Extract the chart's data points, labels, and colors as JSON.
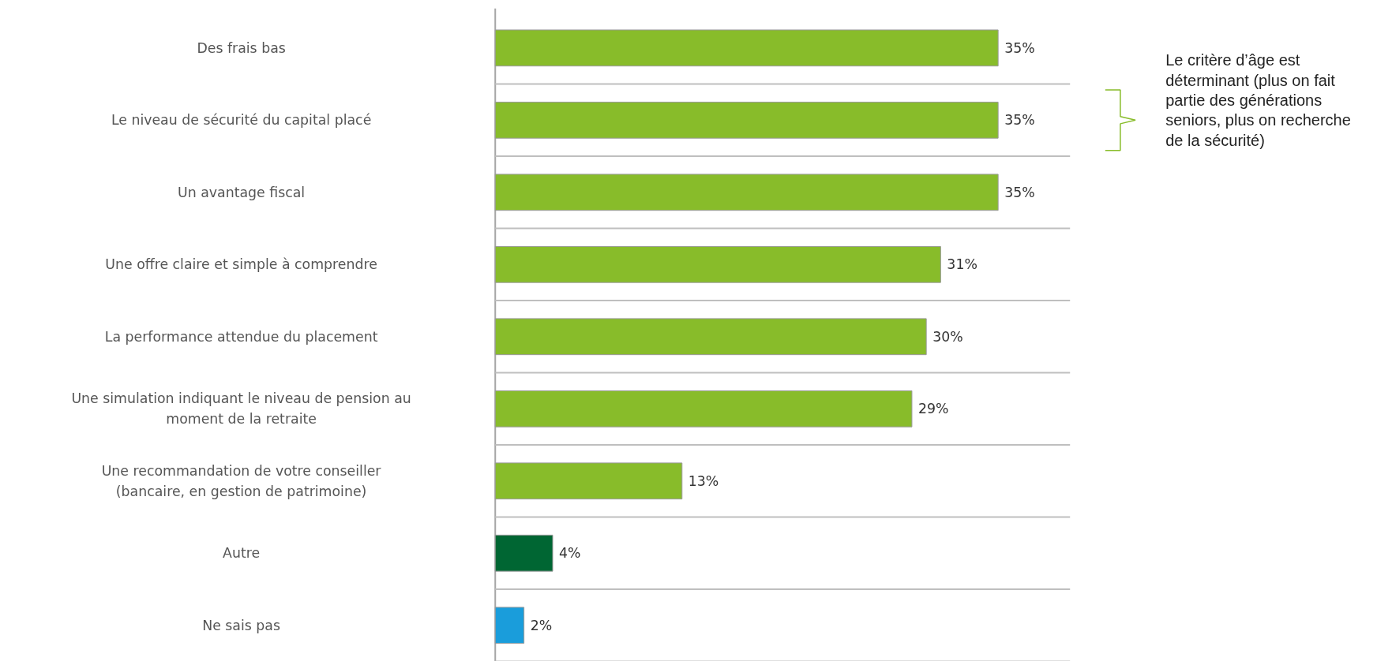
{
  "chart_data": {
    "type": "bar",
    "orientation": "horizontal",
    "categories": [
      "Des frais bas",
      "Le niveau de sécurité du capital placé",
      "Un avantage fiscal",
      "Une offre claire et simple à comprendre",
      "La performance attendue du placement",
      "Une simulation indiquant le niveau de pension au moment de la retraite",
      "Une recommandation de votre conseiller (bancaire, en gestion de patrimoine)",
      "Autre",
      "Ne sais pas"
    ],
    "values": [
      35,
      35,
      35,
      31,
      30,
      29,
      13,
      4,
      2
    ],
    "value_labels": [
      "35%",
      "35%",
      "35%",
      "31%",
      "30%",
      "29%",
      "13%",
      "4%",
      "2%"
    ],
    "colors": [
      "#88bc2a",
      "#88bc2a",
      "#88bc2a",
      "#88bc2a",
      "#88bc2a",
      "#88bc2a",
      "#88bc2a",
      "#006633",
      "#1a9ddb"
    ],
    "tick_labels": "y",
    "grid": "y",
    "annotations": [
      "Le critère d’âge est déterminant (plus on fait partie des générations seniors, plus on recherche de la sécurité)"
    ]
  }
}
